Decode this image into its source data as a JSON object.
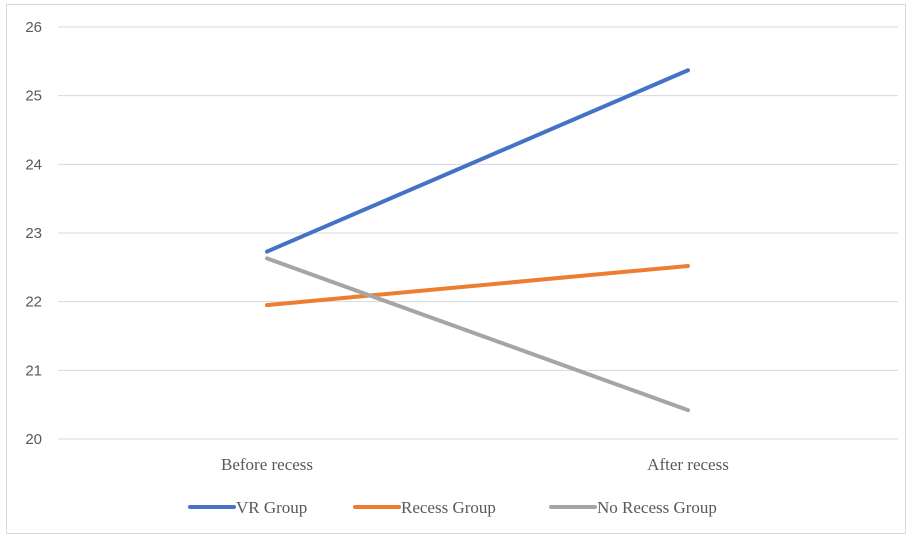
{
  "chart_data": {
    "type": "line",
    "title": "",
    "xlabel": "",
    "ylabel": "",
    "categories": [
      "Before recess",
      "After recess"
    ],
    "ylim": [
      20,
      26
    ],
    "yticks": [
      20,
      21,
      22,
      23,
      24,
      25,
      26
    ],
    "grid": true,
    "legend_position": "bottom",
    "series": [
      {
        "name": "VR Group",
        "values": [
          22.73,
          25.37
        ],
        "color": "#4472c4"
      },
      {
        "name": "Recess Group",
        "values": [
          21.95,
          22.52
        ],
        "color": "#ed7d31"
      },
      {
        "name": "No Recess Group",
        "values": [
          22.63,
          20.42
        ],
        "color": "#a5a5a5"
      }
    ]
  }
}
